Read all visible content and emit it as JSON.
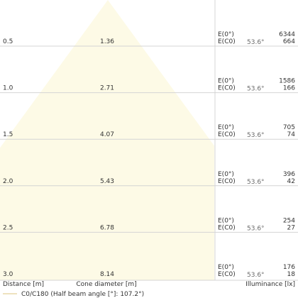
{
  "chart_data": {
    "type": "area",
    "x_axis_label": "Cone diameter [m]",
    "y_axis_label": "Distance [m]",
    "right_axis_label": "Illuminance [lx]",
    "legend": {
      "entry": "C0/C180 (Half beam angle [°]: 107.2°)",
      "color": "#e8d8a8"
    },
    "cone_fill": "#fdfae6",
    "beam_angle_label": "53.6°",
    "rows": [
      {
        "distance": "0.5",
        "diameter": "1.36",
        "e0_label": "E(0°)",
        "ec0_label": "E(C0)",
        "e0": "6344",
        "ec0": "664"
      },
      {
        "distance": "1.0",
        "diameter": "2.71",
        "e0_label": "E(0°)",
        "ec0_label": "E(C0)",
        "e0": "1586",
        "ec0": "166"
      },
      {
        "distance": "1.5",
        "diameter": "4.07",
        "e0_label": "E(0°)",
        "ec0_label": "E(C0)",
        "e0": "705",
        "ec0": "74"
      },
      {
        "distance": "2.0",
        "diameter": "5.43",
        "e0_label": "E(0°)",
        "ec0_label": "E(C0)",
        "e0": "396",
        "ec0": "42"
      },
      {
        "distance": "2.5",
        "diameter": "6.78",
        "e0_label": "E(0°)",
        "ec0_label": "E(C0)",
        "e0": "254",
        "ec0": "27"
      },
      {
        "distance": "3.0",
        "diameter": "8.14",
        "e0_label": "E(0°)",
        "ec0_label": "E(C0)",
        "e0": "176",
        "ec0": "18"
      }
    ]
  }
}
